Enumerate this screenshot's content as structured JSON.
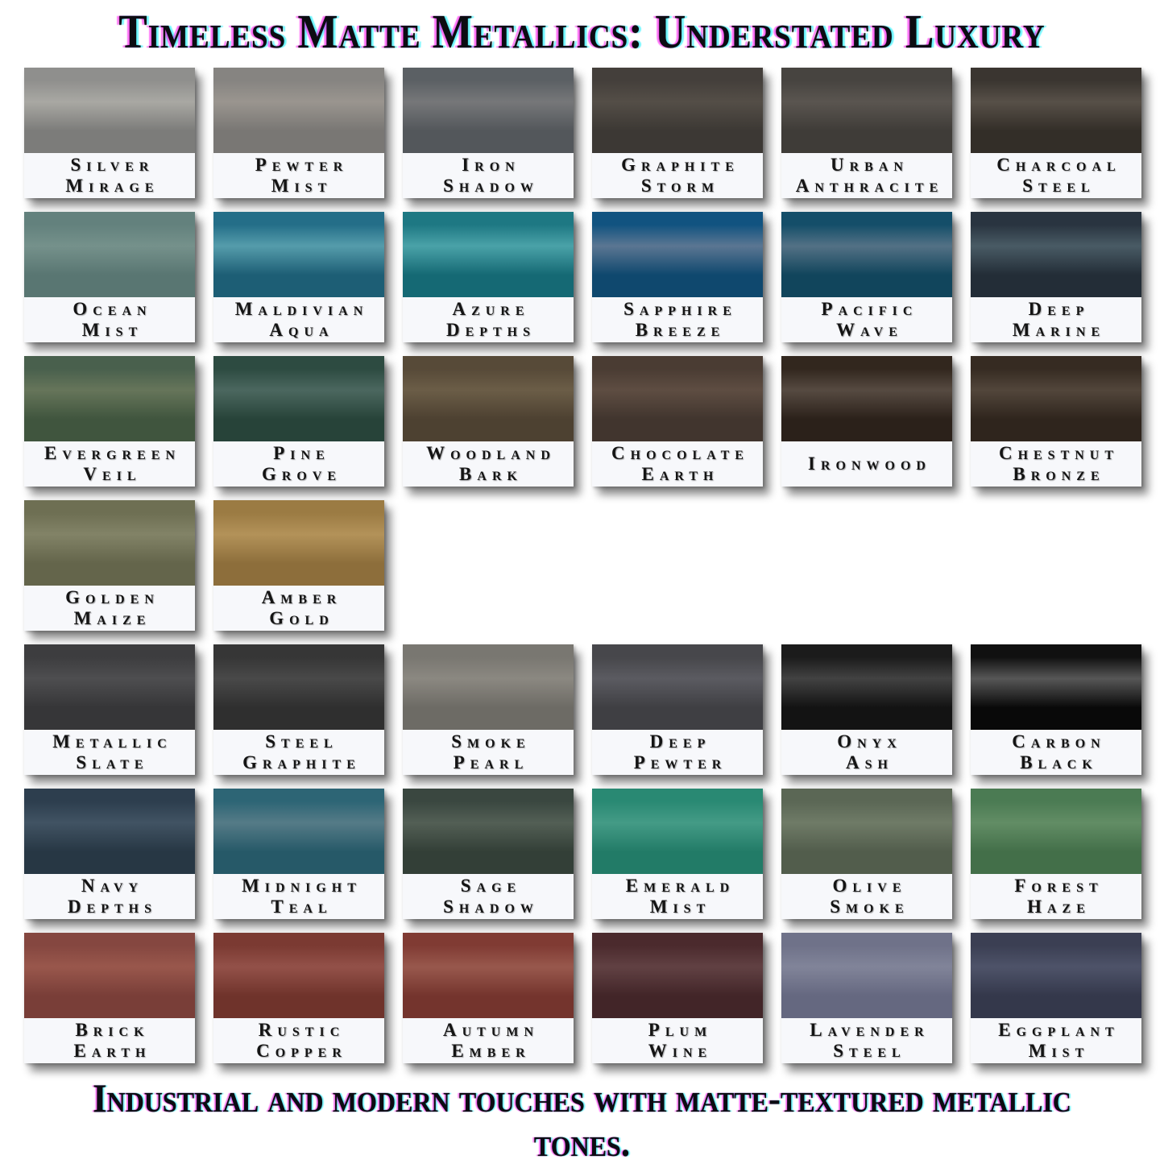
{
  "title": "Timeless Matte Metallics: Understated Luxury",
  "caption": "Industrial and modern touches with matte-textured metallic tones.",
  "label_background": "#f7f8fb",
  "rows": [
    [
      {
        "name": "Silver Mirage",
        "words": [
          "Silver",
          "Mirage"
        ],
        "top": "#8f8f8d",
        "band": "#a9a8a3",
        "bottom": "#7c7c7a"
      },
      {
        "name": "Pewter Mist",
        "words": [
          "Pewter",
          "Mist"
        ],
        "top": "#868481",
        "band": "#9a958f",
        "bottom": "#797774"
      },
      {
        "name": "Iron Shadow",
        "words": [
          "Iron",
          "Shadow"
        ],
        "top": "#5b6064",
        "band": "#767779",
        "bottom": "#53575b"
      },
      {
        "name": "Graphite Storm",
        "words": [
          "Graphite",
          "Storm"
        ],
        "top": "#443f3b",
        "band": "#544e47",
        "bottom": "#3c3834"
      },
      {
        "name": "Urban Anthracite",
        "words": [
          "Urban",
          "Anthracite"
        ],
        "top": "#474440",
        "band": "#5a5550",
        "bottom": "#3f3c38"
      },
      {
        "name": "Charcoal Steel",
        "words": [
          "Charcoal",
          "Steel"
        ],
        "top": "#3a3530",
        "band": "#575048",
        "bottom": "#332e28"
      }
    ],
    [
      {
        "name": "Ocean Mist",
        "words": [
          "Ocean",
          "Mist"
        ],
        "top": "#63817d",
        "band": "#75918b",
        "bottom": "#597672"
      },
      {
        "name": "Maldivian Aqua",
        "words": [
          "Maldivian",
          "Aqua"
        ],
        "top": "#246e88",
        "band": "#559cab",
        "bottom": "#1d5e75"
      },
      {
        "name": "Azure Depths",
        "words": [
          "Azure",
          "Depths"
        ],
        "top": "#1e7883",
        "band": "#4aa2a8",
        "bottom": "#156974"
      },
      {
        "name": "Sapphire Breeze",
        "words": [
          "Sapphire",
          "Breeze"
        ],
        "top": "#115380",
        "band": "#5b7692",
        "bottom": "#0f486e"
      },
      {
        "name": "Pacific Wave",
        "words": [
          "Pacific",
          "Wave"
        ],
        "top": "#144e69",
        "band": "#537185",
        "bottom": "#11455c"
      },
      {
        "name": "Deep Marine",
        "words": [
          "Deep",
          "Marine"
        ],
        "top": "#293440",
        "band": "#495b65",
        "bottom": "#232d37"
      }
    ],
    [
      {
        "name": "Evergreen Veil",
        "words": [
          "Evergreen",
          "Veil"
        ],
        "top": "#49604d",
        "band": "#66755a",
        "bottom": "#40553e"
      },
      {
        "name": "Pine Grove",
        "words": [
          "Pine",
          "Grove"
        ],
        "top": "#2d4b41",
        "band": "#4b675f",
        "bottom": "#274339"
      },
      {
        "name": "Woodland Bark",
        "words": [
          "Woodland",
          "Bark"
        ],
        "top": "#574a38",
        "band": "#6b5d47",
        "bottom": "#4d4131"
      },
      {
        "name": "Chocolate Earth",
        "words": [
          "Chocolate",
          "Earth"
        ],
        "top": "#4a3c33",
        "band": "#5e4d42",
        "bottom": "#41352e"
      },
      {
        "name": "Ironwood",
        "words": [
          "Ironwood"
        ],
        "top": "#32271e",
        "band": "#564a41",
        "bottom": "#2b211a"
      },
      {
        "name": "Chestnut Bronze",
        "words": [
          "Chestnut",
          "Bronze"
        ],
        "top": "#362b22",
        "band": "#52463b",
        "bottom": "#2f251d"
      }
    ],
    [
      {
        "name": "Golden Maize",
        "words": [
          "Golden",
          "Maize"
        ],
        "top": "#6e6f53",
        "band": "#828367",
        "bottom": "#64654b"
      },
      {
        "name": "Amber Gold",
        "words": [
          "Amber",
          "Gold"
        ],
        "top": "#9b7b43",
        "band": "#b39259",
        "bottom": "#8d6e3b"
      }
    ],
    [
      {
        "name": "Metallic Slate",
        "words": [
          "Metallic",
          "Slate"
        ],
        "top": "#3d3d3f",
        "band": "#4e4e50",
        "bottom": "#363638"
      },
      {
        "name": "Steel Graphite",
        "words": [
          "Steel",
          "Graphite"
        ],
        "top": "#363636",
        "band": "#494949",
        "bottom": "#2f2f2f"
      },
      {
        "name": "Smoke Pearl",
        "words": [
          "Smoke",
          "Pearl"
        ],
        "top": "#797771",
        "band": "#8b8881",
        "bottom": "#6d6b65"
      },
      {
        "name": "Deep Pewter",
        "words": [
          "Deep",
          "Pewter"
        ],
        "top": "#47474b",
        "band": "#5b5b61",
        "bottom": "#3f3f43"
      },
      {
        "name": "Onyx Ash",
        "words": [
          "Onyx",
          "Ash"
        ],
        "top": "#1b1b1b",
        "band": "#424242",
        "bottom": "#131313"
      },
      {
        "name": "Carbon Black",
        "words": [
          "Carbon",
          "Black"
        ],
        "top": "#101010",
        "band": "#575757",
        "bottom": "#090909"
      }
    ],
    [
      {
        "name": "Navy Depths",
        "words": [
          "Navy",
          "Depths"
        ],
        "top": "#2d3e4e",
        "band": "#415363",
        "bottom": "#273744"
      },
      {
        "name": "Midnight Teal",
        "words": [
          "Midnight",
          "Teal"
        ],
        "top": "#2d6575",
        "band": "#557b87",
        "bottom": "#265968"
      },
      {
        "name": "Sage Shadow",
        "words": [
          "Sage",
          "Shadow"
        ],
        "top": "#3a4740",
        "band": "#535f55",
        "bottom": "#333f37"
      },
      {
        "name": "Emerald Mist",
        "words": [
          "Emerald",
          "Mist"
        ],
        "top": "#298973",
        "band": "#449b86",
        "bottom": "#227b67"
      },
      {
        "name": "Olive Smoke",
        "words": [
          "Olive",
          "Smoke"
        ],
        "top": "#5b6755",
        "band": "#6f7b67",
        "bottom": "#525d4c"
      },
      {
        "name": "Forest Haze",
        "words": [
          "Forest",
          "Haze"
        ],
        "top": "#4b7b53",
        "band": "#628d65",
        "bottom": "#436f49"
      }
    ],
    [
      {
        "name": "Brick Earth",
        "words": [
          "Brick",
          "Earth"
        ],
        "top": "#854740",
        "band": "#99574c",
        "bottom": "#793e38"
      },
      {
        "name": "Rustic Copper",
        "words": [
          "Rustic",
          "Copper"
        ],
        "top": "#7b3a32",
        "band": "#935149",
        "bottom": "#6f332b"
      },
      {
        "name": "Autumn Ember",
        "words": [
          "Autumn",
          "Ember"
        ],
        "top": "#803b33",
        "band": "#98584d",
        "bottom": "#74342d"
      },
      {
        "name": "Plum Wine",
        "words": [
          "Plum",
          "Wine"
        ],
        "top": "#4b2a2d",
        "band": "#614143",
        "bottom": "#422528"
      },
      {
        "name": "Lavender Steel",
        "words": [
          "Lavender",
          "Steel"
        ],
        "top": "#6f7289",
        "band": "#818499",
        "bottom": "#656880"
      },
      {
        "name": "Eggplant Mist",
        "words": [
          "Eggplant",
          "Mist"
        ],
        "top": "#3b3f53",
        "band": "#4e5369",
        "bottom": "#34384b"
      }
    ]
  ]
}
